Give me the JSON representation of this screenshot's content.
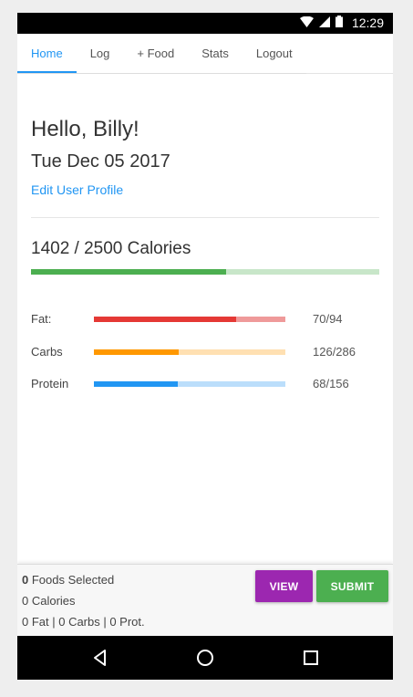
{
  "status_bar": {
    "time": "12:29",
    "icons": [
      "wifi-icon",
      "signal-icon",
      "battery-icon"
    ]
  },
  "nav": {
    "tabs": [
      {
        "label": "Home",
        "active": true
      },
      {
        "label": "Log",
        "active": false
      },
      {
        "label": "+ Food",
        "active": false
      },
      {
        "label": "Stats",
        "active": false
      },
      {
        "label": "Logout",
        "active": false
      }
    ]
  },
  "main": {
    "greeting": "Hello, Billy!",
    "date": "Tue Dec 05 2017",
    "edit_profile_label": "Edit User Profile",
    "calories": {
      "text": "1402 / 2500 Calories",
      "consumed": 1402,
      "goal": 2500,
      "color": "#4caf50",
      "track_color": "#c8e6c9"
    },
    "macros": [
      {
        "label": "Fat:",
        "value_text": "70/94",
        "consumed": 70,
        "goal": 94,
        "color": "#e53935",
        "track_color": "#ef9a9a"
      },
      {
        "label": "Carbs",
        "value_text": "126/286",
        "consumed": 126,
        "goal": 286,
        "color": "#ff9800",
        "track_color": "#ffe0b2"
      },
      {
        "label": "Protein",
        "value_text": "68/156",
        "consumed": 68,
        "goal": 156,
        "color": "#2196f3",
        "track_color": "#bbdefb"
      }
    ]
  },
  "bottom": {
    "foods_count": "0",
    "foods_selected_label": "Foods Selected",
    "calories_line": "0 Calories",
    "macros_line": "0 Fat | 0 Carbs | 0 Prot.",
    "view_label": "VIEW",
    "submit_label": "SUBMIT",
    "view_color": "#9c27b0",
    "submit_color": "#4caf50"
  },
  "android_nav": {
    "icons": [
      "back-icon",
      "home-icon",
      "recents-icon"
    ]
  }
}
